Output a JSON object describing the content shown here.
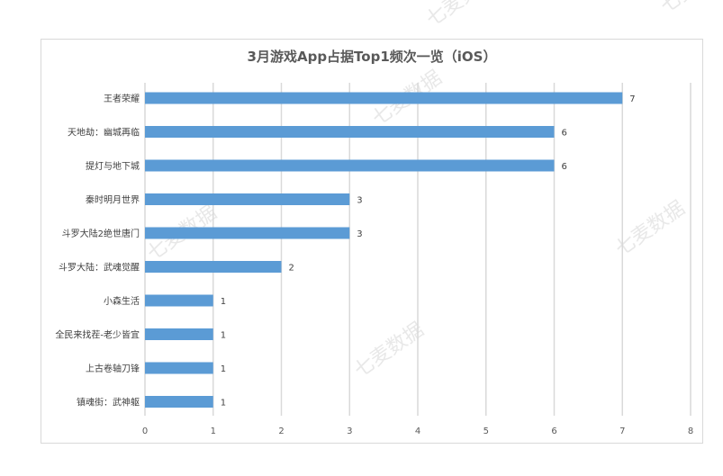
{
  "watermark": "七麦数据",
  "chart_data": {
    "type": "bar",
    "orientation": "horizontal",
    "title": "3月游戏App占据Top1频次一览（iOS）",
    "categories": [
      "王者荣耀",
      "天地劫：幽城再临",
      "提灯与地下城",
      "秦时明月世界",
      "斗罗大陆2绝世唐门",
      "斗罗大陆：武魂觉醒",
      "小森生活",
      "全民来找茬-老少皆宜",
      "上古卷轴刀锋",
      "镇魂街：武神躯"
    ],
    "values": [
      7,
      6,
      6,
      3,
      3,
      2,
      1,
      1,
      1,
      1
    ],
    "xlim": [
      0,
      8
    ],
    "xticks": [
      0,
      1,
      2,
      3,
      4,
      5,
      6,
      7,
      8
    ],
    "xlabel": "",
    "ylabel": "",
    "grid": true,
    "bar_color": "#5b9bd5",
    "grid_color": "#d9d9d9",
    "data_labels": true
  }
}
